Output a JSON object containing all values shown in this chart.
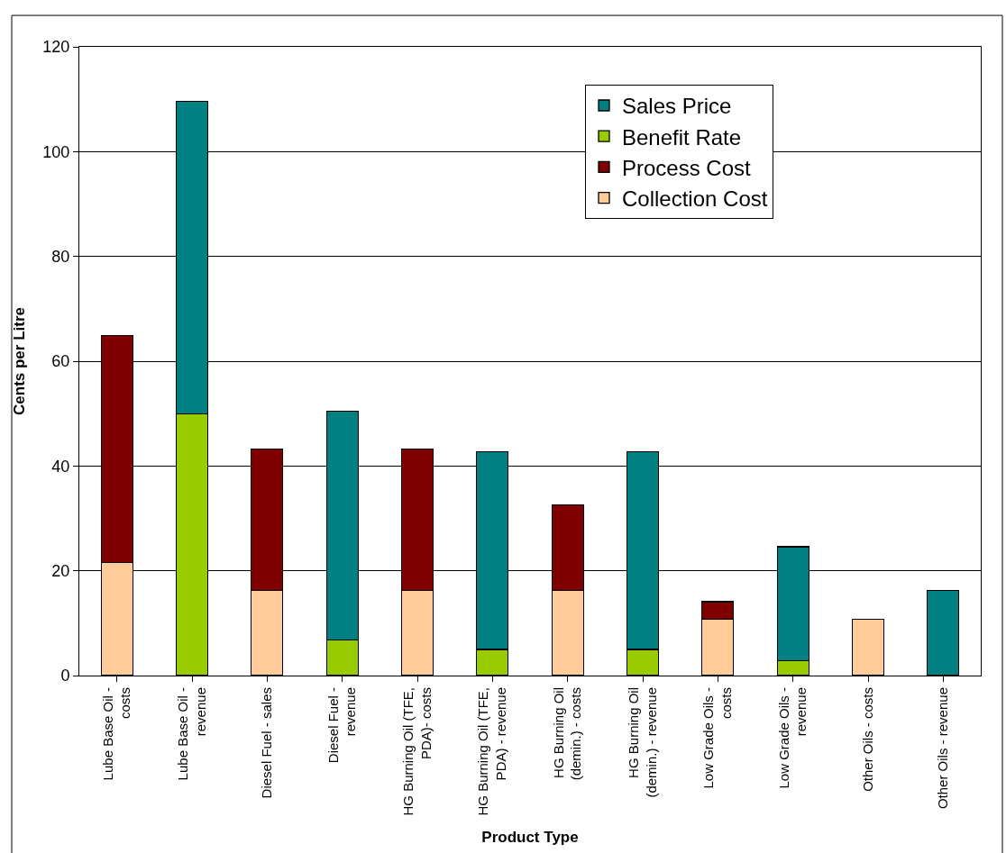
{
  "chart_data": {
    "type": "bar",
    "stacked": true,
    "xlabel": "Product Type",
    "ylabel": "Cents per Litre",
    "categories": [
      "Lube Base Oil - costs",
      "Lube Base Oil - revenue",
      "Diesel Fuel - sales",
      "Diesel Fuel - revenue",
      "HG Burning Oil (TFE, PDA)- costs",
      "HG Burning Oil (TFE, PDA) - revenue",
      "HG Burning Oil (demin.) - costs",
      "HG Burning Oil (demin.) - revenue",
      "Low Grade Oils - costs",
      "Low Grade Oils - revenue",
      "Other Oils - costs",
      "Other Oils - revenue"
    ],
    "series": [
      {
        "name": "Collection Cost",
        "color": "#ffcc99",
        "values": [
          21.6,
          null,
          16.2,
          null,
          16.2,
          null,
          16.2,
          null,
          10.8,
          null,
          10.8,
          null
        ]
      },
      {
        "name": "Process Cost",
        "color": "#800000",
        "values": [
          43.3,
          null,
          27.0,
          null,
          27.0,
          null,
          16.4,
          null,
          3.3,
          null,
          null,
          null
        ]
      },
      {
        "name": "Benefit Rate",
        "color": "#99cc00",
        "values": [
          null,
          50.0,
          null,
          6.8,
          null,
          5.0,
          null,
          5.0,
          null,
          2.8,
          null,
          null
        ]
      },
      {
        "name": "Sales Price",
        "color": "#008080",
        "values": [
          null,
          59.6,
          null,
          43.6,
          null,
          37.7,
          null,
          37.7,
          null,
          21.8,
          null,
          16.2
        ]
      }
    ],
    "ylim": [
      0,
      120
    ],
    "yticks": [
      0,
      20,
      40,
      60,
      80,
      100,
      120
    ],
    "grid": "y",
    "legend": "top right"
  }
}
